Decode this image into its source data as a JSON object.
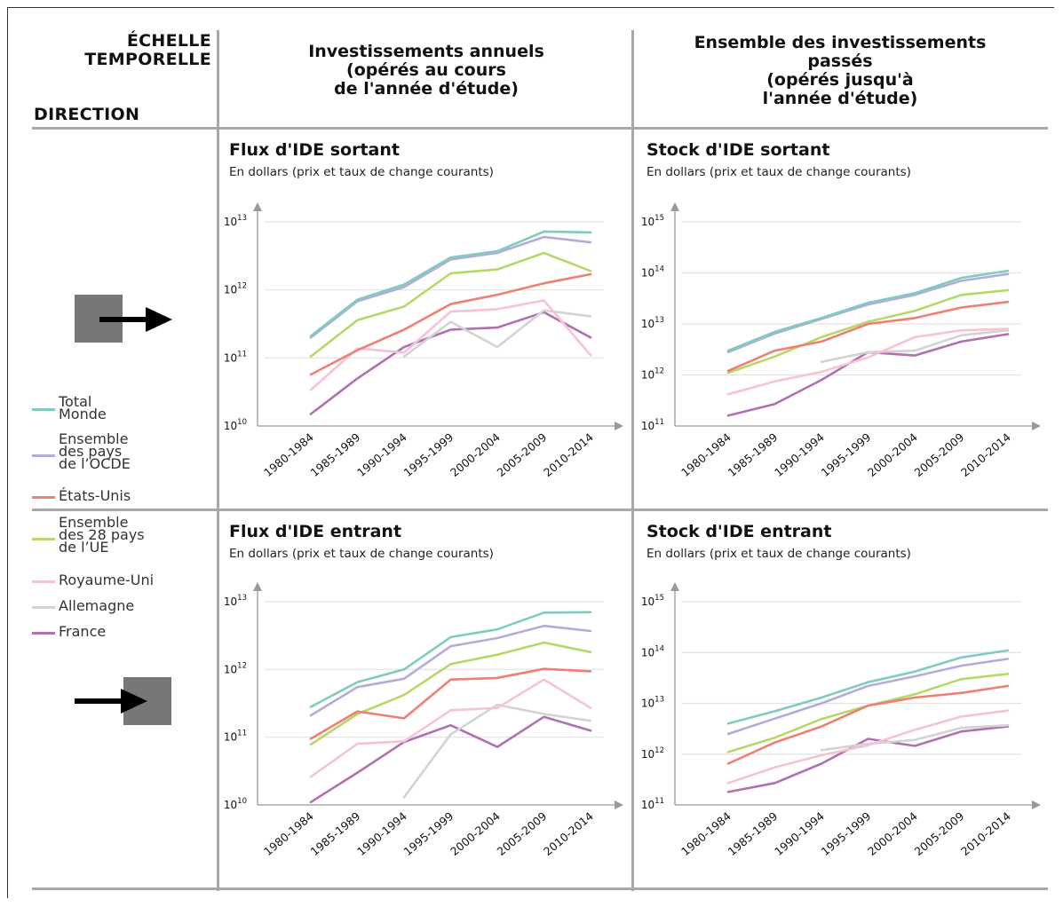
{
  "corner": {
    "top_label_1": "ÉCHELLE",
    "top_label_2": "TEMPORELLE",
    "bottom_label": "DIRECTION"
  },
  "columns": [
    {
      "line1": "Investissements annuels",
      "line2": "(opérés au cours",
      "line3": "de l'année d'étude)",
      "line4": ""
    },
    {
      "line1": "Ensemble des investissements",
      "line2": "passés",
      "line3": "(opérés jusqu'à",
      "line4": "l'année d'étude)"
    }
  ],
  "rows": [
    {
      "icon": "outgoing-arrow-icon"
    },
    {
      "icon": "incoming-arrow-icon"
    }
  ],
  "legend": [
    {
      "label": "Total\nMonde",
      "color": "#7ecbbf"
    },
    {
      "label": "Ensemble\ndes pays\nde l’OCDE",
      "color": "#b3acd9"
    },
    {
      "label": "États-Unis",
      "color": "#ee7f72"
    },
    {
      "label": "Ensemble\ndes 28 pays\nde l’UE",
      "color": "#b5d869"
    },
    {
      "label": "Royaume-Uni",
      "color": "#f8c2d6"
    },
    {
      "label": "Allemagne",
      "color": "#d3d3d3"
    },
    {
      "label": "France",
      "color": "#b071b1"
    }
  ],
  "chart_data": [
    {
      "type": "line",
      "log_scale": true,
      "title": "Flux d'IDE sortant",
      "subtitle": "En dollars (prix et taux de change courants)",
      "categories": [
        "1980-1984",
        "1985-1989",
        "1990-1994",
        "1995-1999",
        "2000-2004",
        "2005-2009",
        "2010-2014"
      ],
      "y_ticks": [
        {
          "base": "10",
          "exp": "10"
        },
        {
          "base": "10",
          "exp": "11"
        },
        {
          "base": "10",
          "exp": "12"
        },
        {
          "base": "10",
          "exp": "13"
        }
      ],
      "ylim": [
        10000000000.0,
        10000000000000.0
      ],
      "series": [
        {
          "name": "Total Monde",
          "values": [
            210000000000.0,
            720000000000.0,
            1200000000000.0,
            3000000000000.0,
            3700000000000.0,
            7200000000000.0,
            7000000000000.0
          ]
        },
        {
          "name": "Ensemble des pays de l’OCDE",
          "values": [
            200000000000.0,
            680000000000.0,
            1100000000000.0,
            2800000000000.0,
            3500000000000.0,
            6000000000000.0,
            5000000000000.0
          ]
        },
        {
          "name": "États-Unis",
          "values": [
            57000000000.0,
            130000000000.0,
            260000000000.0,
            620000000000.0,
            850000000000.0,
            1250000000000.0,
            1700000000000.0
          ]
        },
        {
          "name": "Ensemble des 28 pays de l’UE",
          "values": [
            105000000000.0,
            360000000000.0,
            570000000000.0,
            1750000000000.0,
            2000000000000.0,
            3500000000000.0,
            1900000000000.0
          ]
        },
        {
          "name": "Royaume-Uni",
          "values": [
            34000000000.0,
            138000000000.0,
            120000000000.0,
            480000000000.0,
            520000000000.0,
            700000000000.0,
            110000000000.0
          ]
        },
        {
          "name": "Allemagne",
          "values": [
            null,
            null,
            105000000000.0,
            340000000000.0,
            145000000000.0,
            500000000000.0,
            410000000000.0
          ]
        },
        {
          "name": "France",
          "values": [
            15000000000.0,
            50000000000.0,
            145000000000.0,
            260000000000.0,
            280000000000.0,
            470000000000.0,
            200000000000.0
          ]
        }
      ]
    },
    {
      "type": "line",
      "log_scale": true,
      "title": "Stock d'IDE sortant",
      "subtitle": "En dollars (prix et taux de change courants)",
      "categories": [
        "1980-1984",
        "1985-1989",
        "1990-1994",
        "1995-1999",
        "2000-2004",
        "2005-2009",
        "2010-2014"
      ],
      "y_ticks": [
        {
          "base": "10",
          "exp": "11"
        },
        {
          "base": "10",
          "exp": "12"
        },
        {
          "base": "10",
          "exp": "13"
        },
        {
          "base": "10",
          "exp": "14"
        },
        {
          "base": "10",
          "exp": "15"
        }
      ],
      "ylim": [
        100000000000.0,
        1000000000000000.0
      ],
      "series": [
        {
          "name": "Total Monde",
          "values": [
            3000000000000.0,
            7000000000000.0,
            13000000000000.0,
            26000000000000.0,
            40000000000000.0,
            80000000000000.0,
            110000000000000.0
          ]
        },
        {
          "name": "Ensemble des pays de l’OCDE",
          "values": [
            2800000000000.0,
            6500000000000.0,
            12500000000000.0,
            24000000000000.0,
            37000000000000.0,
            70000000000000.0,
            95000000000000.0
          ]
        },
        {
          "name": "États-Unis",
          "values": [
            1200000000000.0,
            3000000000000.0,
            4500000000000.0,
            10000000000000.0,
            13000000000000.0,
            21000000000000.0,
            27000000000000.0
          ]
        },
        {
          "name": "Ensemble des 28 pays de l’UE",
          "values": [
            1100000000000.0,
            2300000000000.0,
            5500000000000.0,
            11000000000000.0,
            18000000000000.0,
            37000000000000.0,
            46000000000000.0
          ]
        },
        {
          "name": "Royaume-Uni",
          "values": [
            420000000000.0,
            750000000000.0,
            1150000000000.0,
            2200000000000.0,
            5500000000000.0,
            7500000000000.0,
            8000000000000.0
          ]
        },
        {
          "name": "Allemagne",
          "values": [
            null,
            null,
            1800000000000.0,
            2800000000000.0,
            3000000000000.0,
            6000000000000.0,
            7500000000000.0
          ]
        },
        {
          "name": "France",
          "values": [
            160000000000.0,
            270000000000.0,
            800000000000.0,
            2800000000000.0,
            2400000000000.0,
            4500000000000.0,
            6300000000000.0
          ]
        }
      ]
    },
    {
      "type": "line",
      "log_scale": true,
      "title": "Flux d'IDE entrant",
      "subtitle": "En dollars (prix et taux de change courants)",
      "categories": [
        "1980-1984",
        "1985-1989",
        "1990-1994",
        "1995-1999",
        "2000-2004",
        "2005-2009",
        "2010-2014"
      ],
      "y_ticks": [
        {
          "base": "10",
          "exp": "10"
        },
        {
          "base": "10",
          "exp": "11"
        },
        {
          "base": "10",
          "exp": "12"
        },
        {
          "base": "10",
          "exp": "13"
        }
      ],
      "ylim": [
        10000000000.0,
        10000000000000.0
      ],
      "series": [
        {
          "name": "Total Monde",
          "values": [
            280000000000.0,
            650000000000.0,
            1000000000000.0,
            3000000000000.0,
            3900000000000.0,
            6900000000000.0,
            7000000000000.0
          ]
        },
        {
          "name": "Ensemble des pays de l’OCDE",
          "values": [
            210000000000.0,
            550000000000.0,
            730000000000.0,
            2200000000000.0,
            2900000000000.0,
            4400000000000.0,
            3700000000000.0
          ]
        },
        {
          "name": "États-Unis",
          "values": [
            95000000000.0,
            240000000000.0,
            190000000000.0,
            710000000000.0,
            750000000000.0,
            1020000000000.0,
            940000000000.0
          ]
        },
        {
          "name": "Ensemble des 28 pays de l’UE",
          "values": [
            78000000000.0,
            220000000000.0,
            420000000000.0,
            1200000000000.0,
            1650000000000.0,
            2500000000000.0,
            1800000000000.0
          ]
        },
        {
          "name": "Royaume-Uni",
          "values": [
            26000000000.0,
            80000000000.0,
            87000000000.0,
            250000000000.0,
            270000000000.0,
            710000000000.0,
            270000000000.0
          ]
        },
        {
          "name": "Allemagne",
          "values": [
            null,
            null,
            13000000000.0,
            110000000000.0,
            300000000000.0,
            220000000000.0,
            175000000000.0
          ]
        },
        {
          "name": "France",
          "values": [
            11000000000.0,
            30000000000.0,
            85000000000.0,
            150000000000.0,
            72000000000.0,
            200000000000.0,
            125000000000.0
          ]
        }
      ]
    },
    {
      "type": "line",
      "log_scale": true,
      "title": "Stock d'IDE entrant",
      "subtitle": "En dollars (prix et taux de change courants)",
      "categories": [
        "1980-1984",
        "1985-1989",
        "1990-1994",
        "1995-1999",
        "2000-2004",
        "2005-2009",
        "2010-2014"
      ],
      "y_ticks": [
        {
          "base": "10",
          "exp": "11"
        },
        {
          "base": "10",
          "exp": "12"
        },
        {
          "base": "10",
          "exp": "13"
        },
        {
          "base": "10",
          "exp": "14"
        },
        {
          "base": "10",
          "exp": "15"
        }
      ],
      "ylim": [
        100000000000.0,
        1000000000000000.0
      ],
      "series": [
        {
          "name": "Total Monde",
          "values": [
            4000000000000.0,
            7000000000000.0,
            13000000000000.0,
            26000000000000.0,
            42000000000000.0,
            80000000000000.0,
            110000000000000.0
          ]
        },
        {
          "name": "Ensemble des pays de l’OCDE",
          "values": [
            2500000000000.0,
            5000000000000.0,
            10000000000000.0,
            22000000000000.0,
            34000000000000.0,
            55000000000000.0,
            75000000000000.0
          ]
        },
        {
          "name": "États-Unis",
          "values": [
            650000000000.0,
            1700000000000.0,
            3500000000000.0,
            9000000000000.0,
            13000000000000.0,
            16000000000000.0,
            22000000000000.0
          ]
        },
        {
          "name": "Ensemble des 28 pays de l’UE",
          "values": [
            1100000000000.0,
            2100000000000.0,
            4900000000000.0,
            9000000000000.0,
            15000000000000.0,
            30000000000000.0,
            38000000000000.0
          ]
        },
        {
          "name": "Royaume-Uni",
          "values": [
            270000000000.0,
            550000000000.0,
            950000000000.0,
            1500000000000.0,
            3000000000000.0,
            5500000000000.0,
            7200000000000.0
          ]
        },
        {
          "name": "Allemagne",
          "values": [
            null,
            null,
            1200000000000.0,
            1600000000000.0,
            1900000000000.0,
            3300000000000.0,
            3700000000000.0
          ]
        },
        {
          "name": "France",
          "values": [
            180000000000.0,
            270000000000.0,
            650000000000.0,
            2000000000000.0,
            1450000000000.0,
            2800000000000.0,
            3500000000000.0
          ]
        }
      ]
    }
  ]
}
